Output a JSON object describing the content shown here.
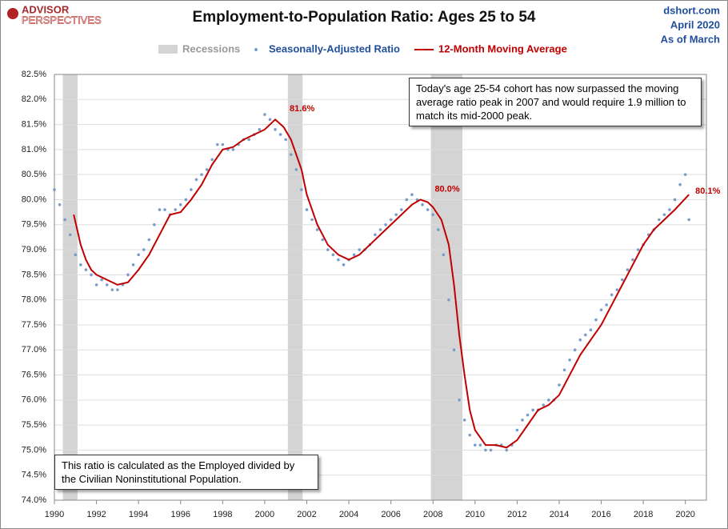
{
  "header": {
    "logo_top": "ADVISOR",
    "logo_bottom": "PERSPECTIVES",
    "source": "dshort.com",
    "date": "April 2020",
    "as_of": "As of March"
  },
  "notes": [
    "Today's age 25-54  cohort has now surpassed the moving average ratio peak in 2007  and would require 1.9 million to match its mid-2000 peak.",
    "This ratio is calculated as the Employed divided by the Civilian Noninstitutional Population."
  ],
  "chart_data": {
    "type": "line",
    "title": "Employment-to-Population Ratio: Ages 25 to 54",
    "xlim": [
      1990,
      2021
    ],
    "xticks": [
      1990,
      1992,
      1994,
      1996,
      1998,
      2000,
      2002,
      2004,
      2006,
      2008,
      2010,
      2012,
      2014,
      2016,
      2018,
      2020
    ],
    "ylim": [
      74.0,
      82.5
    ],
    "yticks": [
      {
        "value": 74.0,
        "label": "74.0%"
      },
      {
        "value": 74.5,
        "label": "74.5%"
      },
      {
        "value": 75.0,
        "label": "75.0%"
      },
      {
        "value": 75.5,
        "label": "75.5%"
      },
      {
        "value": 76.0,
        "label": "76.0%"
      },
      {
        "value": 76.5,
        "label": "76.5%"
      },
      {
        "value": 77.0,
        "label": "77.0%"
      },
      {
        "value": 77.5,
        "label": "77.5%"
      },
      {
        "value": 78.0,
        "label": "78.0%"
      },
      {
        "value": 78.5,
        "label": "78.5%"
      },
      {
        "value": 79.0,
        "label": "79.0%"
      },
      {
        "value": 79.5,
        "label": "79.5%"
      },
      {
        "value": 80.0,
        "label": "80.0%"
      },
      {
        "value": 80.5,
        "label": "80.5%"
      },
      {
        "value": 81.0,
        "label": "81.0%"
      },
      {
        "value": 81.5,
        "label": "81.5%"
      },
      {
        "value": 82.0,
        "label": "82.0%"
      },
      {
        "value": 82.5,
        "label": "82.5%"
      }
    ],
    "grid": true,
    "recessions": {
      "name": "Recessions",
      "color": "#d4d4d4",
      "ranges": [
        [
          1990.4,
          1991.1
        ],
        [
          2001.1,
          2001.8
        ],
        [
          2007.9,
          2009.4
        ]
      ]
    },
    "series": [
      {
        "name": "Seasonally-Adjusted Ratio",
        "style": "scatter",
        "color": "#7a9cc9",
        "x": [
          1990,
          1990.25,
          1990.5,
          1990.75,
          1991,
          1991.25,
          1991.5,
          1991.75,
          1992,
          1992.25,
          1992.5,
          1992.75,
          1993,
          1993.25,
          1993.5,
          1993.75,
          1994,
          1994.25,
          1994.5,
          1994.75,
          1995,
          1995.25,
          1995.5,
          1995.75,
          1996,
          1996.25,
          1996.5,
          1996.75,
          1997,
          1997.25,
          1997.5,
          1997.75,
          1998,
          1998.25,
          1998.5,
          1998.75,
          1999,
          1999.25,
          1999.5,
          1999.75,
          2000,
          2000.25,
          2000.5,
          2000.75,
          2001,
          2001.25,
          2001.5,
          2001.75,
          2002,
          2002.25,
          2002.5,
          2002.75,
          2003,
          2003.25,
          2003.5,
          2003.75,
          2004,
          2004.25,
          2004.5,
          2004.75,
          2005,
          2005.25,
          2005.5,
          2005.75,
          2006,
          2006.25,
          2006.5,
          2006.75,
          2007,
          2007.25,
          2007.5,
          2007.75,
          2008,
          2008.25,
          2008.5,
          2008.75,
          2009,
          2009.25,
          2009.5,
          2009.75,
          2010,
          2010.25,
          2010.5,
          2010.75,
          2011,
          2011.25,
          2011.5,
          2011.75,
          2012,
          2012.25,
          2012.5,
          2012.75,
          2013,
          2013.25,
          2013.5,
          2013.75,
          2014,
          2014.25,
          2014.5,
          2014.75,
          2015,
          2015.25,
          2015.5,
          2015.75,
          2016,
          2016.25,
          2016.5,
          2016.75,
          2017,
          2017.25,
          2017.5,
          2017.75,
          2018,
          2018.25,
          2018.5,
          2018.75,
          2019,
          2019.25,
          2019.5,
          2019.75,
          2020,
          2020.17
        ],
        "values": [
          80.2,
          79.9,
          79.6,
          79.3,
          78.9,
          78.7,
          78.6,
          78.5,
          78.3,
          78.4,
          78.3,
          78.2,
          78.2,
          78.3,
          78.5,
          78.7,
          78.9,
          79.0,
          79.2,
          79.5,
          79.8,
          79.8,
          79.7,
          79.8,
          79.9,
          80.0,
          80.2,
          80.4,
          80.5,
          80.6,
          80.8,
          81.1,
          81.1,
          81.0,
          81.0,
          81.1,
          81.2,
          81.2,
          81.3,
          81.4,
          81.7,
          81.6,
          81.4,
          81.3,
          81.2,
          80.9,
          80.6,
          80.2,
          79.8,
          79.6,
          79.4,
          79.2,
          79.0,
          78.9,
          78.8,
          78.7,
          78.8,
          78.9,
          79.0,
          79.0,
          79.1,
          79.3,
          79.4,
          79.5,
          79.6,
          79.7,
          79.8,
          80.0,
          80.1,
          80.0,
          79.9,
          79.8,
          79.7,
          79.4,
          78.9,
          78.0,
          77.0,
          76.0,
          75.6,
          75.3,
          75.1,
          75.1,
          75.0,
          75.0,
          75.1,
          75.1,
          75.0,
          75.1,
          75.4,
          75.6,
          75.7,
          75.8,
          75.8,
          75.9,
          76.0,
          76.0,
          76.3,
          76.6,
          76.8,
          77.0,
          77.2,
          77.3,
          77.4,
          77.6,
          77.8,
          77.9,
          78.1,
          78.2,
          78.4,
          78.6,
          78.8,
          79.0,
          79.1,
          79.3,
          79.4,
          79.6,
          79.7,
          79.8,
          80.0,
          80.3,
          80.5,
          79.6
        ]
      },
      {
        "name": "12-Month Moving Average",
        "style": "line",
        "color": "#c00000",
        "x": [
          1990.92,
          1991.25,
          1991.5,
          1991.75,
          1992,
          1992.5,
          1993,
          1993.5,
          1994,
          1994.5,
          1995,
          1995.5,
          1996,
          1996.5,
          1997,
          1997.5,
          1998,
          1998.5,
          1999,
          1999.5,
          2000,
          2000.5,
          2000.9,
          2001.25,
          2001.75,
          2002,
          2002.5,
          2003,
          2003.5,
          2004,
          2004.5,
          2005,
          2005.5,
          2006,
          2006.5,
          2007,
          2007.4,
          2007.75,
          2008,
          2008.4,
          2008.75,
          2009,
          2009.25,
          2009.5,
          2009.75,
          2010,
          2010.5,
          2011,
          2011.5,
          2012,
          2012.5,
          2013,
          2013.5,
          2014,
          2014.5,
          2015,
          2015.5,
          2016,
          2016.5,
          2017,
          2017.5,
          2018,
          2018.5,
          2019,
          2019.5,
          2020.17
        ],
        "values": [
          79.7,
          79.1,
          78.8,
          78.6,
          78.5,
          78.4,
          78.3,
          78.35,
          78.6,
          78.9,
          79.3,
          79.7,
          79.75,
          80.0,
          80.3,
          80.7,
          81.0,
          81.05,
          81.2,
          81.3,
          81.4,
          81.6,
          81.45,
          81.2,
          80.6,
          80.1,
          79.5,
          79.1,
          78.9,
          78.8,
          78.9,
          79.1,
          79.3,
          79.5,
          79.7,
          79.9,
          80.0,
          79.95,
          79.85,
          79.6,
          79.1,
          78.3,
          77.3,
          76.5,
          75.8,
          75.4,
          75.1,
          75.1,
          75.05,
          75.2,
          75.5,
          75.8,
          75.9,
          76.1,
          76.5,
          76.9,
          77.2,
          77.5,
          77.9,
          78.3,
          78.7,
          79.1,
          79.4,
          79.6,
          79.8,
          80.1
        ],
        "value_labels": [
          null,
          null,
          null,
          null,
          null,
          null,
          null,
          null,
          null,
          null,
          null,
          null,
          null,
          null,
          null,
          null,
          null,
          null,
          null,
          null,
          null,
          "81.6%",
          null,
          null,
          null,
          null,
          null,
          null,
          null,
          null,
          null,
          null,
          null,
          null,
          null,
          null,
          "80.0%",
          null,
          null,
          null,
          null,
          null,
          null,
          null,
          null,
          null,
          null,
          null,
          null,
          null,
          null,
          null,
          null,
          null,
          null,
          null,
          null,
          null,
          null,
          null,
          null,
          null,
          null,
          null,
          null,
          "80.1%"
        ]
      }
    ]
  }
}
